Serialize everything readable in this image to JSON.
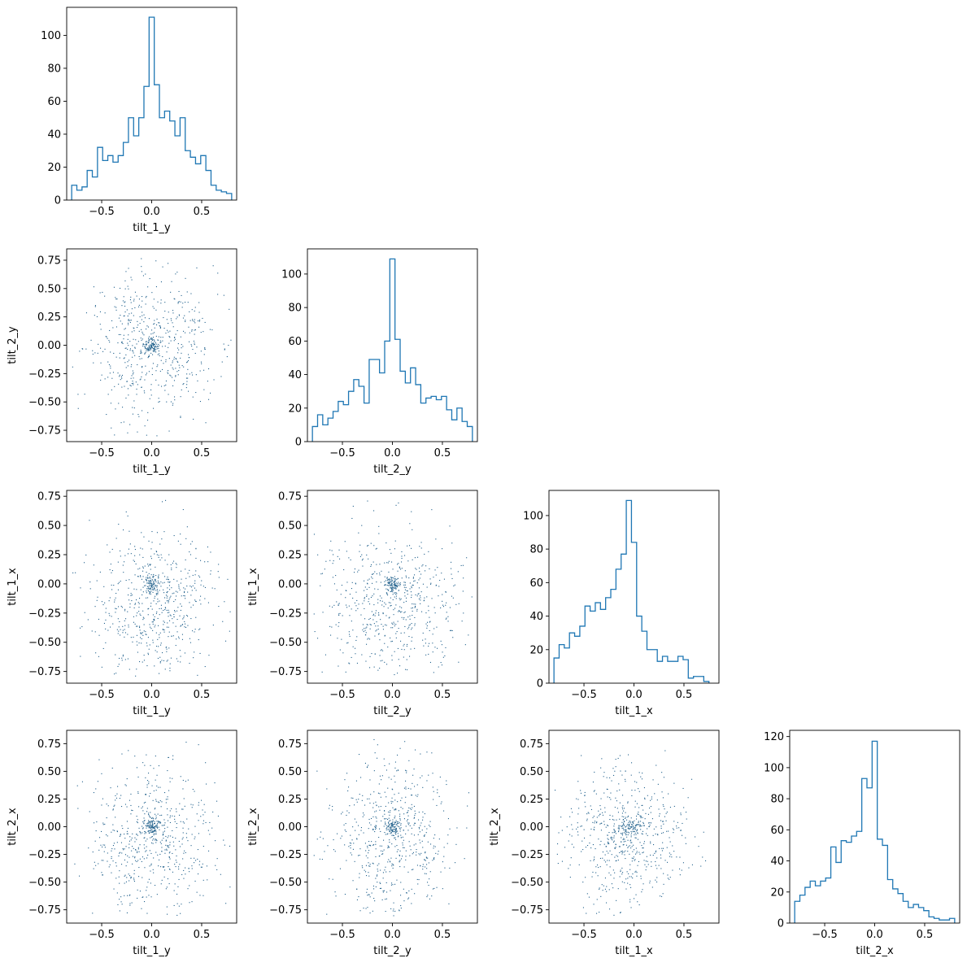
{
  "figure": {
    "variables": [
      "tilt_1_y",
      "tilt_2_y",
      "tilt_1_x",
      "tilt_2_x"
    ],
    "colors": {
      "hist": "#1f77b4",
      "points": "#1f5f8b"
    }
  },
  "chart_data": [
    {
      "type": "histogram",
      "row": 0,
      "col": 0,
      "xlabel": "tilt_1_y",
      "ylabel": "",
      "xlim": [
        -0.85,
        0.85
      ],
      "ylim": [
        0,
        117
      ],
      "xticks": [
        -0.5,
        0.0,
        0.5
      ],
      "yticks": [
        0,
        20,
        40,
        60,
        80,
        100
      ],
      "bin_edges_range": [
        -0.8,
        0.8
      ],
      "counts": [
        9,
        6,
        8,
        18,
        14,
        32,
        24,
        27,
        23,
        27,
        35,
        50,
        39,
        50,
        69,
        111,
        70,
        50,
        54,
        48,
        39,
        50,
        30,
        26,
        22,
        27,
        18,
        9,
        6,
        5,
        4
      ]
    },
    {
      "type": "scatter",
      "row": 1,
      "col": 0,
      "xlabel": "tilt_1_y",
      "ylabel": "tilt_2_y",
      "xlim": [
        -0.85,
        0.85
      ],
      "ylim": [
        -0.85,
        0.85
      ],
      "xticks": [
        -0.5,
        0.0,
        0.5
      ],
      "yticks": [
        -0.75,
        -0.5,
        -0.25,
        0.0,
        0.25,
        0.5,
        0.75
      ],
      "points_hint": {
        "n": 700,
        "center": [
          0.0,
          0.0
        ],
        "spread": [
          0.33,
          0.35
        ],
        "seed": 11
      }
    },
    {
      "type": "histogram",
      "row": 1,
      "col": 1,
      "xlabel": "tilt_2_y",
      "ylabel": "",
      "xlim": [
        -0.85,
        0.85
      ],
      "ylim": [
        0,
        115
      ],
      "xticks": [
        -0.5,
        0.0,
        0.5
      ],
      "yticks": [
        0,
        20,
        40,
        60,
        80,
        100
      ],
      "bin_edges_range": [
        -0.8,
        0.8
      ],
      "counts": [
        9,
        16,
        10,
        14,
        18,
        24,
        22,
        30,
        37,
        33,
        23,
        49,
        49,
        41,
        60,
        109,
        61,
        42,
        35,
        44,
        34,
        23,
        26,
        27,
        25,
        27,
        19,
        13,
        20,
        12,
        9
      ]
    },
    {
      "type": "scatter",
      "row": 2,
      "col": 0,
      "xlabel": "tilt_1_y",
      "ylabel": "tilt_1_x",
      "xlim": [
        -0.85,
        0.85
      ],
      "ylim": [
        -0.85,
        0.8
      ],
      "xticks": [
        -0.5,
        0.0,
        0.5
      ],
      "yticks": [
        -0.75,
        -0.5,
        -0.25,
        0.0,
        0.25,
        0.5,
        0.75
      ],
      "points_hint": {
        "n": 700,
        "center": [
          0.0,
          -0.15
        ],
        "spread": [
          0.32,
          0.32
        ],
        "seed": 23
      }
    },
    {
      "type": "scatter",
      "row": 2,
      "col": 1,
      "xlabel": "tilt_2_y",
      "ylabel": "tilt_1_x",
      "xlim": [
        -0.85,
        0.85
      ],
      "ylim": [
        -0.85,
        0.8
      ],
      "xticks": [
        -0.5,
        0.0,
        0.5
      ],
      "yticks": [
        -0.75,
        -0.5,
        -0.25,
        0.0,
        0.25,
        0.5,
        0.75
      ],
      "points_hint": {
        "n": 700,
        "center": [
          0.0,
          -0.15
        ],
        "spread": [
          0.33,
          0.32
        ],
        "seed": 37
      }
    },
    {
      "type": "histogram",
      "row": 2,
      "col": 2,
      "xlabel": "tilt_1_x",
      "ylabel": "",
      "xlim": [
        -0.85,
        0.85
      ],
      "ylim": [
        0,
        115
      ],
      "xticks": [
        -0.5,
        0.0,
        0.5
      ],
      "yticks": [
        0,
        20,
        40,
        60,
        80,
        100
      ],
      "bin_edges_range": [
        -0.8,
        0.75
      ],
      "counts": [
        15,
        23,
        21,
        30,
        28,
        34,
        46,
        43,
        48,
        44,
        51,
        56,
        68,
        77,
        109,
        84,
        40,
        31,
        20,
        20,
        13,
        16,
        13,
        13,
        16,
        14,
        3,
        4,
        4,
        1
      ]
    },
    {
      "type": "scatter",
      "row": 3,
      "col": 0,
      "xlabel": "tilt_1_y",
      "ylabel": "tilt_2_x",
      "xlim": [
        -0.85,
        0.85
      ],
      "ylim": [
        -0.87,
        0.87
      ],
      "xticks": [
        -0.5,
        0.0,
        0.5
      ],
      "yticks": [
        -0.75,
        -0.5,
        -0.25,
        0.0,
        0.25,
        0.5,
        0.75
      ],
      "points_hint": {
        "n": 700,
        "center": [
          0.0,
          -0.1
        ],
        "spread": [
          0.32,
          0.33
        ],
        "seed": 41
      }
    },
    {
      "type": "scatter",
      "row": 3,
      "col": 1,
      "xlabel": "tilt_2_y",
      "ylabel": "tilt_2_x",
      "xlim": [
        -0.85,
        0.85
      ],
      "ylim": [
        -0.87,
        0.87
      ],
      "xticks": [
        -0.5,
        0.0,
        0.5
      ],
      "yticks": [
        -0.75,
        -0.5,
        -0.25,
        0.0,
        0.25,
        0.5,
        0.75
      ],
      "points_hint": {
        "n": 700,
        "center": [
          0.0,
          -0.1
        ],
        "spread": [
          0.33,
          0.33
        ],
        "seed": 53
      }
    },
    {
      "type": "scatter",
      "row": 3,
      "col": 2,
      "xlabel": "tilt_1_x",
      "ylabel": "tilt_2_x",
      "xlim": [
        -0.85,
        0.85
      ],
      "ylim": [
        -0.87,
        0.87
      ],
      "xticks": [
        -0.5,
        0.0,
        0.5
      ],
      "yticks": [
        -0.75,
        -0.5,
        -0.25,
        0.0,
        0.25,
        0.5,
        0.75
      ],
      "points_hint": {
        "n": 700,
        "center": [
          -0.12,
          -0.1
        ],
        "spread": [
          0.3,
          0.32
        ],
        "seed": 67
      }
    },
    {
      "type": "histogram",
      "row": 3,
      "col": 3,
      "xlabel": "tilt_2_x",
      "ylabel": "",
      "xlim": [
        -0.85,
        0.85
      ],
      "ylim": [
        0,
        124
      ],
      "xticks": [
        -0.5,
        0.0,
        0.5
      ],
      "yticks": [
        0,
        20,
        40,
        60,
        80,
        100,
        120
      ],
      "bin_edges_range": [
        -0.8,
        0.8
      ],
      "counts": [
        14,
        18,
        23,
        27,
        24,
        27,
        29,
        49,
        39,
        53,
        52,
        56,
        59,
        93,
        87,
        117,
        54,
        50,
        28,
        22,
        19,
        14,
        10,
        12,
        10,
        8,
        4,
        3,
        2,
        2,
        3
      ]
    }
  ]
}
